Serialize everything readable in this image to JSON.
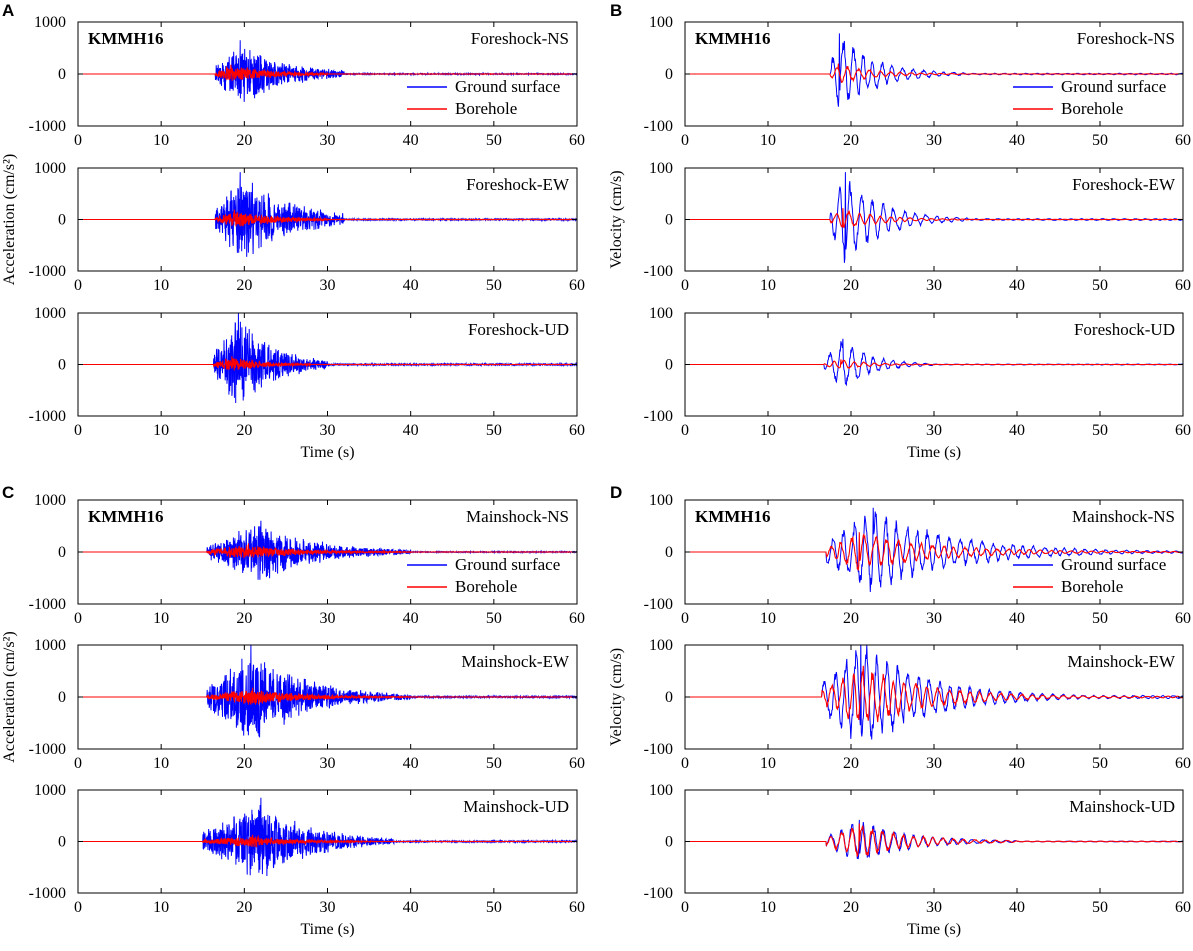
{
  "figure": {
    "station": "KMMH16",
    "xlabel": "Time (s)",
    "xlim": [
      0,
      60
    ],
    "xticks": [
      0,
      10,
      20,
      30,
      40,
      50,
      60
    ],
    "legend": [
      {
        "label": "Ground surface",
        "color": "#0000ff"
      },
      {
        "label": "Borehole",
        "color": "#ff0000"
      }
    ]
  },
  "chart_data": [
    {
      "panel": "A",
      "type": "line",
      "title": "KMMH16",
      "component": "Foreshock-NS",
      "ylabel": "",
      "ylim": [
        -1000,
        1000
      ],
      "yticks": [
        -1000,
        0,
        1000
      ],
      "xlabel": "",
      "series": [
        {
          "name": "Ground surface",
          "color": "#0000ff",
          "onset": 16.5,
          "peak_time": 19.5,
          "peak": 650,
          "coda_end": 32,
          "duration": 13
        },
        {
          "name": "Borehole",
          "color": "#ff0000",
          "onset": 16.5,
          "peak_time": 18.4,
          "peak": 180,
          "coda_end": 30,
          "duration": 12
        }
      ]
    },
    {
      "panel": "A",
      "type": "line",
      "component": "Foreshock-EW",
      "ylabel": "Acceleration (cm/s²)",
      "ylim": [
        -1000,
        1000
      ],
      "yticks": [
        -1000,
        0,
        1000
      ],
      "xlabel": "",
      "series": [
        {
          "name": "Ground surface",
          "color": "#0000ff",
          "onset": 16.5,
          "peak_time": 19.5,
          "peak": 920,
          "coda_end": 32,
          "duration": 14
        },
        {
          "name": "Borehole",
          "color": "#ff0000",
          "onset": 16.5,
          "peak_time": 18.8,
          "peak": 190,
          "coda_end": 30,
          "duration": 12
        }
      ]
    },
    {
      "panel": "A",
      "type": "line",
      "component": "Foreshock-UD",
      "ylabel": "",
      "ylim": [
        -1000,
        1000
      ],
      "yticks": [
        -1000,
        0,
        1000
      ],
      "xlabel": "Time (s)",
      "series": [
        {
          "name": "Ground surface",
          "color": "#0000ff",
          "onset": 16.3,
          "peak_time": 19.3,
          "peak": 1000,
          "coda_end": 30,
          "duration": 10
        },
        {
          "name": "Borehole",
          "color": "#ff0000",
          "onset": 16.3,
          "peak_time": 18.5,
          "peak": 160,
          "coda_end": 28,
          "duration": 9
        }
      ]
    },
    {
      "panel": "B",
      "type": "line",
      "title": "KMMH16",
      "component": "Foreshock-NS",
      "ylabel": "",
      "ylim": [
        -100,
        100
      ],
      "yticks": [
        -100,
        0,
        100
      ],
      "xlabel": "",
      "series": [
        {
          "name": "Ground surface",
          "color": "#0000ff",
          "onset": 17.5,
          "peak_time": 18.6,
          "peak": 78,
          "coda_end": 34,
          "duration": 10
        },
        {
          "name": "Borehole",
          "color": "#ff0000",
          "onset": 17.5,
          "peak_time": 18.5,
          "peak": 20,
          "coda_end": 34,
          "duration": 10
        }
      ]
    },
    {
      "panel": "B",
      "type": "line",
      "component": "Foreshock-EW",
      "ylabel": "Velocity (cm/s)",
      "ylim": [
        -100,
        100
      ],
      "yticks": [
        -100,
        0,
        100
      ],
      "xlabel": "",
      "series": [
        {
          "name": "Ground surface",
          "color": "#0000ff",
          "onset": 17.5,
          "peak_time": 19.3,
          "peak": 92,
          "coda_end": 34,
          "duration": 10
        },
        {
          "name": "Borehole",
          "color": "#ff0000",
          "onset": 17.5,
          "peak_time": 19.0,
          "peak": 22,
          "coda_end": 34,
          "duration": 10
        }
      ]
    },
    {
      "panel": "B",
      "type": "line",
      "component": "Foreshock-UD",
      "ylabel": "",
      "ylim": [
        -100,
        100
      ],
      "yticks": [
        -100,
        0,
        100
      ],
      "xlabel": "Time (s)",
      "series": [
        {
          "name": "Ground surface",
          "color": "#0000ff",
          "onset": 16.8,
          "peak_time": 19.0,
          "peak": 50,
          "coda_end": 30,
          "duration": 8
        },
        {
          "name": "Borehole",
          "color": "#ff0000",
          "onset": 16.8,
          "peak_time": 18.8,
          "peak": 10,
          "coda_end": 30,
          "duration": 8
        }
      ]
    },
    {
      "panel": "C",
      "type": "line",
      "title": "KMMH16",
      "component": "Mainshock-NS",
      "ylabel": "",
      "ylim": [
        -1000,
        1000
      ],
      "yticks": [
        -1000,
        0,
        1000
      ],
      "xlabel": "",
      "series": [
        {
          "name": "Ground surface",
          "color": "#0000ff",
          "onset": 15.5,
          "peak_time": 22.0,
          "peak": 600,
          "coda_end": 40,
          "duration": 16
        },
        {
          "name": "Borehole",
          "color": "#ff0000",
          "onset": 15.5,
          "peak_time": 20.5,
          "peak": 170,
          "coda_end": 40,
          "duration": 14
        }
      ]
    },
    {
      "panel": "C",
      "type": "line",
      "component": "Mainshock-EW",
      "ylabel": "Acceleration (cm/s²)",
      "ylim": [
        -1000,
        1000
      ],
      "yticks": [
        -1000,
        0,
        1000
      ],
      "xlabel": "",
      "series": [
        {
          "name": "Ground surface",
          "color": "#0000ff",
          "onset": 15.5,
          "peak_time": 20.8,
          "peak": 1000,
          "coda_end": 40,
          "duration": 15
        },
        {
          "name": "Borehole",
          "color": "#ff0000",
          "onset": 15.5,
          "peak_time": 21.0,
          "peak": 180,
          "coda_end": 40,
          "duration": 14
        }
      ]
    },
    {
      "panel": "C",
      "type": "line",
      "component": "Mainshock-UD",
      "ylabel": "",
      "ylim": [
        -1000,
        1000
      ],
      "yticks": [
        -1000,
        0,
        1000
      ],
      "xlabel": "Time (s)",
      "series": [
        {
          "name": "Ground surface",
          "color": "#0000ff",
          "onset": 15.0,
          "peak_time": 22.0,
          "peak": 850,
          "coda_end": 38,
          "duration": 14
        },
        {
          "name": "Borehole",
          "color": "#ff0000",
          "onset": 15.0,
          "peak_time": 21.0,
          "peak": 130,
          "coda_end": 36,
          "duration": 12
        }
      ]
    },
    {
      "panel": "D",
      "type": "line",
      "title": "KMMH16",
      "component": "Mainshock-NS",
      "ylabel": "",
      "ylim": [
        -100,
        100
      ],
      "yticks": [
        -100,
        0,
        100
      ],
      "xlabel": "",
      "series": [
        {
          "name": "Ground surface",
          "color": "#0000ff",
          "onset": 17.0,
          "peak_time": 22.7,
          "peak": 85,
          "coda_end": 60,
          "duration": 22
        },
        {
          "name": "Borehole",
          "color": "#ff0000",
          "onset": 17.0,
          "peak_time": 21.0,
          "peak": 38,
          "coda_end": 60,
          "duration": 22
        }
      ]
    },
    {
      "panel": "D",
      "type": "line",
      "component": "Mainshock-EW",
      "ylabel": "Velocity (cm/s)",
      "ylim": [
        -100,
        100
      ],
      "yticks": [
        -100,
        0,
        100
      ],
      "xlabel": "",
      "series": [
        {
          "name": "Ground surface",
          "color": "#0000ff",
          "onset": 16.5,
          "peak_time": 21.2,
          "peak": 110,
          "coda_end": 60,
          "duration": 18
        },
        {
          "name": "Borehole",
          "color": "#ff0000",
          "onset": 16.5,
          "peak_time": 21.5,
          "peak": 60,
          "coda_end": 60,
          "duration": 18
        }
      ]
    },
    {
      "panel": "D",
      "type": "line",
      "component": "Mainshock-UD",
      "ylabel": "",
      "ylim": [
        -100,
        100
      ],
      "yticks": [
        -100,
        0,
        100
      ],
      "xlabel": "Time (s)",
      "series": [
        {
          "name": "Ground surface",
          "color": "#0000ff",
          "onset": 17.0,
          "peak_time": 21.0,
          "peak": 42,
          "coda_end": 40,
          "duration": 14
        },
        {
          "name": "Borehole",
          "color": "#ff0000",
          "onset": 17.0,
          "peak_time": 21.0,
          "peak": 35,
          "coda_end": 40,
          "duration": 14
        }
      ]
    }
  ]
}
